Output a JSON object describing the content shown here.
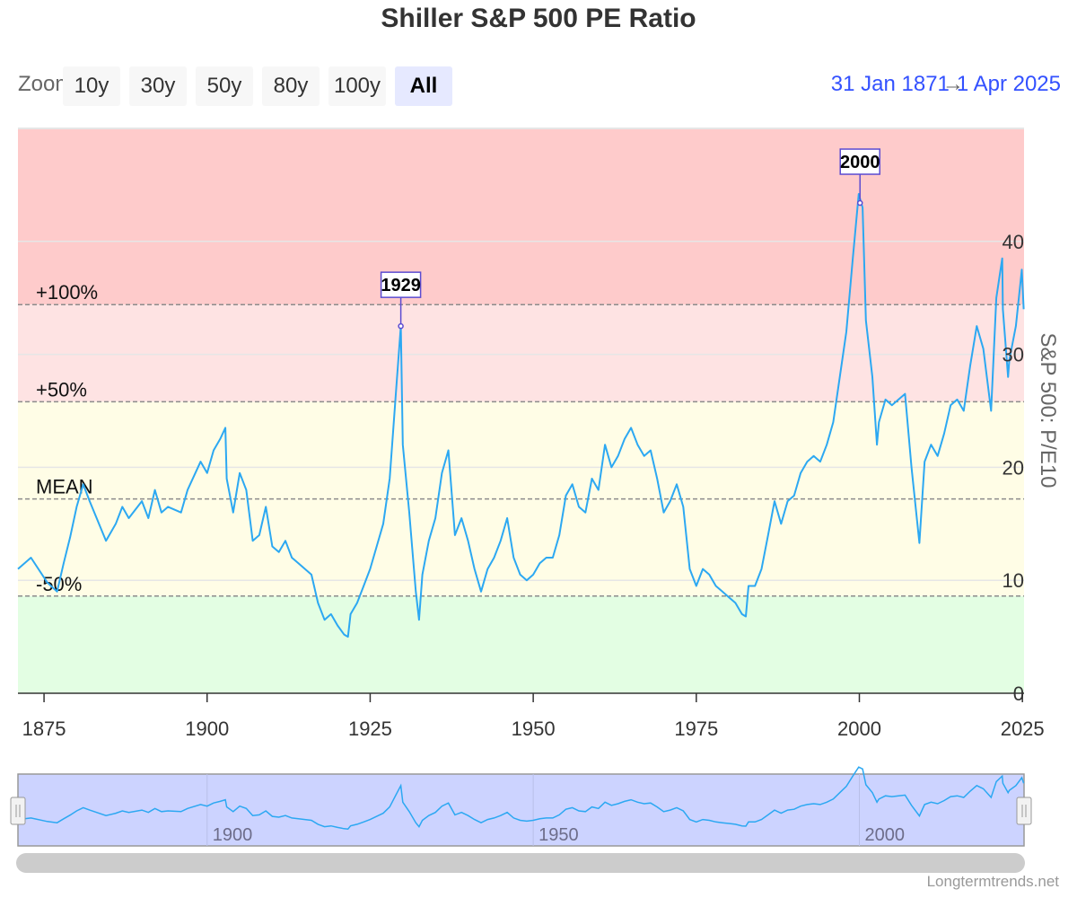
{
  "title": "Shiller S&P 500 PE Ratio",
  "zoom": {
    "label": "Zoom",
    "buttons": [
      "10y",
      "30y",
      "50y",
      "80y",
      "100y",
      "All"
    ],
    "active": "All"
  },
  "range": {
    "from": "31 Jan 1871",
    "to": "1 Apr 2025"
  },
  "credit": "Longtermtrends.net",
  "colors": {
    "line": "#2ca8f2",
    "zone_high": "#fecbcb",
    "zone_mid_high": "#fee3e3",
    "zone_mid": "#fffde6",
    "zone_low": "#e3fee3",
    "navigator_fill": "#ccd3ff",
    "flag_border": "#5b4bd1"
  },
  "chart_data": {
    "type": "line",
    "title": "Shiller S&P 500 PE Ratio",
    "series": [
      {
        "name": "S&P 500: P/E10",
        "x": [
          1871,
          1873,
          1875.5,
          1877,
          1878,
          1879,
          1880,
          1881,
          1882,
          1884.5,
          1886,
          1887,
          1888,
          1890,
          1891,
          1892,
          1893,
          1894,
          1896,
          1897,
          1899,
          1900,
          1901,
          1902,
          1902.8,
          1903,
          1904,
          1905,
          1906,
          1907,
          1908,
          1909,
          1910,
          1911,
          1912,
          1913,
          1914,
          1915,
          1916,
          1917,
          1918,
          1919,
          1920,
          1921,
          1921.6,
          1922,
          1923,
          1924,
          1925,
          1926,
          1927,
          1928,
          1929.0,
          1929.7,
          1930,
          1931,
          1932.0,
          1932.5,
          1933,
          1934,
          1935,
          1936,
          1937,
          1938,
          1939,
          1940,
          1941,
          1942,
          1943,
          1944,
          1945,
          1946,
          1947,
          1948,
          1949,
          1950,
          1951,
          1952,
          1953,
          1954,
          1955,
          1956,
          1957,
          1958,
          1959,
          1960,
          1961,
          1962,
          1963,
          1964,
          1965,
          1966,
          1967,
          1968,
          1969,
          1970,
          1971,
          1972,
          1973,
          1974,
          1975,
          1976,
          1977,
          1978,
          1979,
          1980,
          1981,
          1982.0,
          1982.6,
          1983,
          1984,
          1985,
          1986,
          1987,
          1988,
          1989,
          1990,
          1991,
          1992,
          1993,
          1994,
          1995,
          1996,
          1997,
          1998,
          1999,
          1999.9,
          2000.5,
          2001,
          2002,
          2002.7,
          2003,
          2004,
          2005,
          2006,
          2007,
          2008,
          2009.2,
          2010,
          2011,
          2012,
          2013,
          2014,
          2015,
          2016,
          2017,
          2018,
          2019,
          2020.2,
          2020.6,
          2021,
          2021.9,
          2022,
          2022.8,
          2023,
          2024,
          2024.9,
          2025.2
        ],
        "values": [
          11.0,
          12.0,
          9.8,
          9.0,
          11.5,
          13.8,
          16.5,
          18.5,
          17.0,
          13.5,
          15.0,
          16.5,
          15.5,
          17.0,
          15.5,
          18.0,
          16.0,
          16.5,
          16.0,
          18.0,
          20.5,
          19.5,
          21.5,
          22.5,
          23.5,
          19.0,
          16.0,
          19.5,
          18.0,
          13.5,
          14.0,
          16.5,
          13.0,
          12.5,
          13.5,
          12.0,
          11.5,
          11.0,
          10.5,
          8.0,
          6.5,
          7.0,
          6.0,
          5.2,
          5.0,
          7.0,
          8.0,
          9.5,
          11.0,
          13.0,
          15.0,
          19.0,
          27.0,
          32.5,
          22.0,
          16.0,
          9.0,
          6.5,
          10.5,
          13.5,
          15.5,
          19.5,
          21.5,
          14.0,
          15.5,
          13.5,
          11.0,
          9.0,
          11.0,
          12.0,
          13.5,
          15.5,
          12.0,
          10.5,
          10.0,
          10.5,
          11.5,
          12.0,
          12.0,
          14.0,
          17.5,
          18.5,
          16.5,
          16.0,
          19.0,
          18.0,
          22.0,
          20.0,
          21.0,
          22.5,
          23.5,
          22.0,
          21.0,
          21.5,
          19.0,
          16.0,
          17.0,
          18.5,
          16.5,
          11.0,
          9.5,
          11.0,
          10.5,
          9.5,
          9.0,
          8.5,
          8.0,
          7.0,
          6.8,
          9.5,
          9.5,
          11.0,
          14.0,
          17.0,
          15.0,
          17.0,
          17.5,
          19.5,
          20.5,
          21.0,
          20.5,
          22.0,
          24.0,
          28.0,
          32.0,
          38.5,
          44.2,
          43.0,
          33.0,
          28.0,
          22.0,
          24.0,
          26.0,
          25.5,
          26.0,
          26.5,
          20.0,
          13.3,
          20.5,
          22.0,
          21.0,
          23.0,
          25.5,
          26.0,
          25.0,
          29.0,
          32.5,
          30.5,
          25.0,
          30.0,
          35.0,
          38.5,
          34.0,
          28.0,
          29.5,
          32.5,
          37.5,
          34.0
        ]
      }
    ],
    "ylabel": "S&P 500: P/E10",
    "xlabel": "",
    "ylim": [
      0,
      50
    ],
    "xlim": [
      1871,
      2025.25
    ],
    "x_ticks": [
      1875,
      1900,
      1925,
      1950,
      1975,
      2000,
      2025
    ],
    "x_tick_labels": [
      "1875",
      "1900",
      "1925",
      "1950",
      "1975",
      "2000",
      "2025"
    ],
    "y_ticks": [
      0,
      10,
      20,
      30,
      40
    ],
    "y_tick_labels": [
      "0",
      "10",
      "20",
      "30",
      "40"
    ],
    "reference_lines": [
      {
        "label": "+100%",
        "value": 34.4
      },
      {
        "label": "+50%",
        "value": 25.8
      },
      {
        "label": "MEAN",
        "value": 17.2
      },
      {
        "label": "-50%",
        "value": 8.6
      }
    ],
    "flags": [
      {
        "label": "1929",
        "x": 1929.7,
        "y": 32.5
      },
      {
        "label": "2000",
        "x": 2000.1,
        "y": 43.4
      }
    ],
    "navigator_ticks": [
      1900,
      1950,
      2000
    ],
    "navigator_tick_labels": [
      "1900",
      "1950",
      "2000"
    ],
    "grid": true
  }
}
